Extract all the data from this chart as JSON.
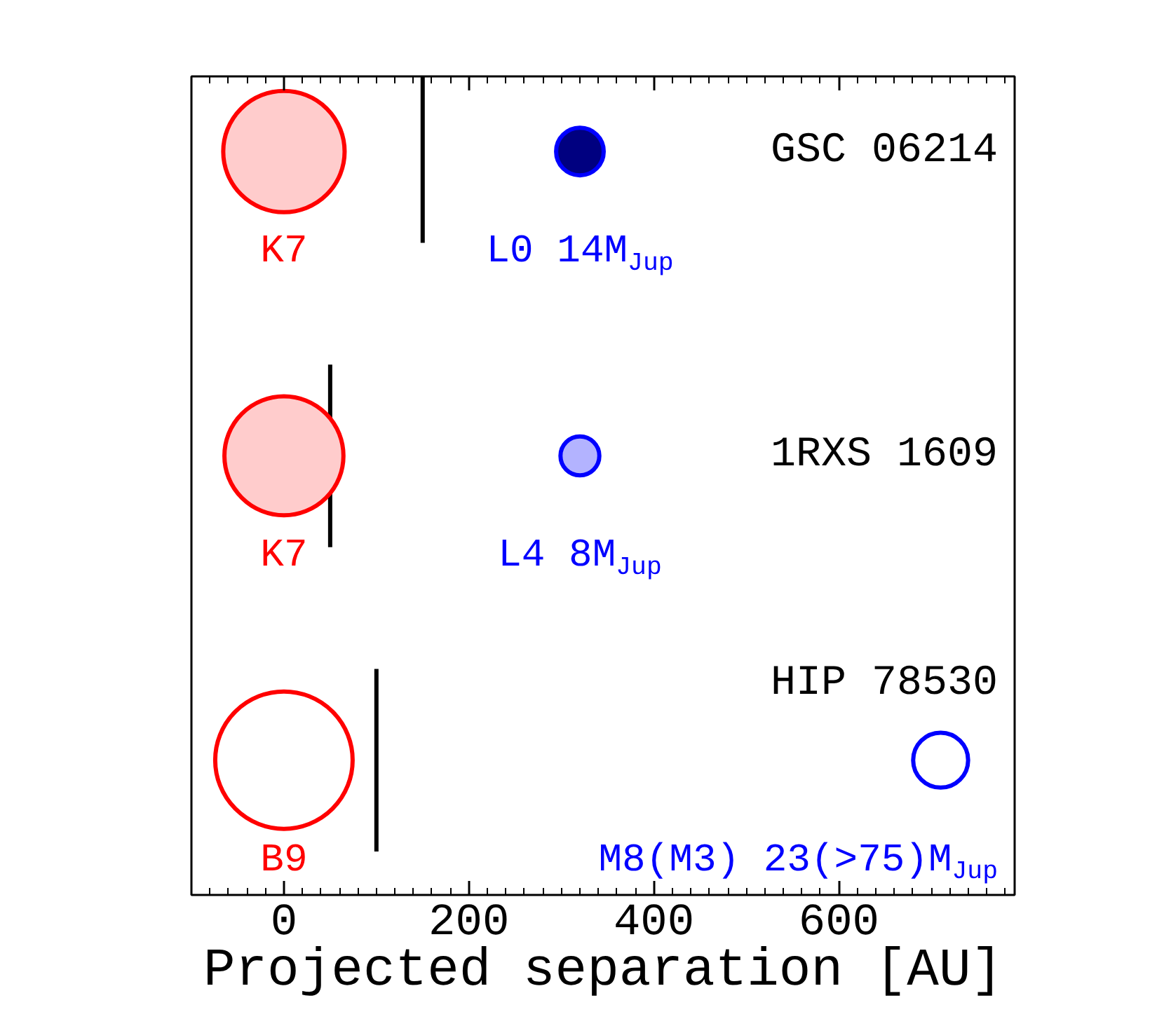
{
  "chart_data": {
    "type": "bubble",
    "orientation": "horizontal",
    "xlabel": "Projected separation [AU]",
    "categories": [
      "GSC 06214",
      "1RXS 1609",
      "HIP 78530"
    ],
    "xlim": [
      -100,
      790
    ],
    "xticks": [
      0,
      200,
      400,
      600
    ],
    "series": [
      {
        "marker": "circle",
        "color": "#ff0000",
        "colors": [
          "#ffcccc",
          "#ffcccc",
          "#ffffff"
        ],
        "values": [
          0,
          0,
          0
        ],
        "sizes": [
          0.78,
          0.75,
          1
        ],
        "value_labels": [
          "K7",
          "K7",
          "B9"
        ]
      },
      {
        "marker": "circle",
        "color": "#0000ff",
        "colors": [
          "#000080",
          "#b3b3ff",
          "#ffffff"
        ],
        "values": [
          320,
          320,
          710
        ],
        "sizes": [
          0.12,
          0.08,
          0.16
        ],
        "value_labels": [
          "L0 14M$_{Jup}$",
          "L4 8M$_{Jup}$",
          "M8(M3) 23(>75)M$_{Jup}$"
        ]
      }
    ],
    "ref_lines": [
      {
        "axis": "x",
        "value": 150,
        "color": "#000000"
      },
      {
        "axis": "x",
        "value": 50,
        "color": "#000000"
      },
      {
        "axis": "x",
        "value": 100,
        "color": "#000000"
      }
    ]
  }
}
